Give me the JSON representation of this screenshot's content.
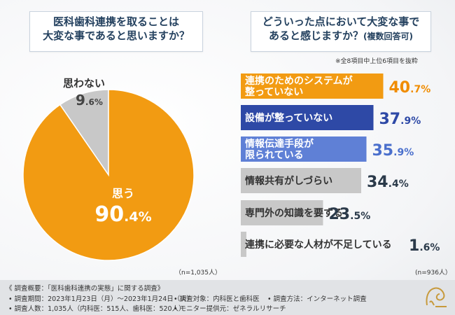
{
  "question_left": {
    "line1": "医科歯科連携を取ることは",
    "line2": "大変な事であると思いますか？"
  },
  "question_right": {
    "line1": "どういった点において大変な事で",
    "line2": "あると感じますか？",
    "line2_suffix": "(複数回答可)"
  },
  "note_top": "※全8項目中上位6項目を抜粋",
  "n_left": "（n=1,035人）",
  "n_right": "(n=936人）",
  "colors": {
    "orange": "#f29b12",
    "gray": "#c8c8c8",
    "navy": "#2e49a6",
    "blue": "#5f80d6",
    "value_orange": "#f08c00",
    "value_navy": "#2e49a6",
    "value_blue": "#4a6fcc",
    "value_dark": "#2b3a4a"
  },
  "footer": {
    "title": "《 調査概要：「医科歯科連携の実態」に関する調査》",
    "period": "• 調査期間：2023年1月23日（月）～2023年1月24日（火）",
    "target": "• 調査対象：内科医と歯科医",
    "method": "• 調査方法：インターネット調査",
    "count": "• 調査人数：1,035人（内科医：515人、歯科医：520人）",
    "monitor": "• モニター提供元：ゼネラルリサーチ"
  },
  "chart_data": [
    {
      "type": "pie",
      "labels": [
        "思う",
        "思わない"
      ],
      "values": [
        90.4,
        9.6
      ],
      "value_labels": [
        "90.4%",
        "9.6%"
      ]
    },
    {
      "type": "bar",
      "orientation": "horizontal",
      "categories": [
        "連携のためのシステムが\n整っていない",
        "設備が整っていない",
        "情報伝達手段が\n限られている",
        "情報共有がしづらい",
        "専門外の知識を要する",
        "連携に必要な人材が不足している"
      ],
      "values": [
        40.7,
        37.9,
        35.9,
        34.4,
        23.5,
        1.6
      ],
      "value_labels": [
        "40.7%",
        "37.9%",
        "35.9%",
        "34.4%",
        "23.5%",
        "1.6%"
      ],
      "xlim": [
        0,
        50
      ]
    }
  ]
}
